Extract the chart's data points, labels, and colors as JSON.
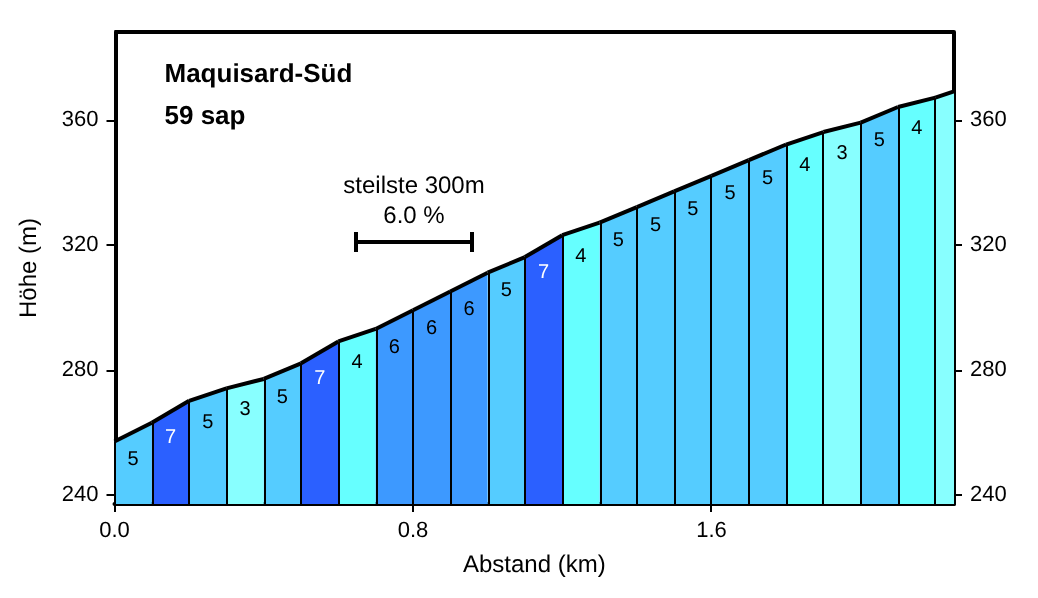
{
  "chart_data": {
    "type": "area",
    "title": "Maquisard-Süd",
    "subtitle": "59 sap",
    "xlabel": "Abstand (km)",
    "ylabel": "Höhe (m)",
    "series": [
      {
        "color": "#55ccff",
        "x": [
          0,
          0.1
        ],
        "values": [
          257,
          263
        ]
      },
      {
        "color": "#2b60ff",
        "x": [
          0.1,
          0.2
        ],
        "values": [
          263,
          270
        ]
      },
      {
        "color": "#55ccff",
        "x": [
          0.2,
          0.3
        ],
        "values": [
          270,
          274
        ]
      },
      {
        "color": "#88ffff",
        "x": [
          0.3,
          0.4
        ],
        "values": [
          274,
          277
        ]
      },
      {
        "color": "#55ccff",
        "x": [
          0.4,
          0.5
        ],
        "values": [
          277,
          282
        ]
      },
      {
        "color": "#2b60ff",
        "x": [
          0.5,
          0.6
        ],
        "values": [
          282,
          289
        ]
      },
      {
        "color": "#66ffff",
        "x": [
          0.6,
          0.7
        ],
        "values": [
          289,
          293
        ]
      },
      {
        "color": "#3d99ff",
        "x": [
          0.7,
          0.8
        ],
        "values": [
          293,
          299
        ]
      },
      {
        "color": "#3d99ff",
        "x": [
          0.8,
          0.9
        ],
        "values": [
          299,
          305
        ]
      },
      {
        "color": "#3d99ff",
        "x": [
          0.9,
          1.0
        ],
        "values": [
          305,
          311
        ]
      },
      {
        "color": "#55ccff",
        "x": [
          1.0,
          1.1
        ],
        "values": [
          311,
          316
        ]
      },
      {
        "color": "#2b60ff",
        "x": [
          1.1,
          1.2
        ],
        "values": [
          316,
          323
        ]
      },
      {
        "color": "#66ffff",
        "x": [
          1.2,
          1.3
        ],
        "values": [
          323,
          327
        ]
      },
      {
        "color": "#55ccff",
        "x": [
          1.3,
          1.4
        ],
        "values": [
          327,
          332
        ]
      },
      {
        "color": "#55ccff",
        "x": [
          1.4,
          1.5
        ],
        "values": [
          332,
          337
        ]
      },
      {
        "color": "#55ccff",
        "x": [
          1.5,
          1.6
        ],
        "values": [
          337,
          342
        ]
      },
      {
        "color": "#55ccff",
        "x": [
          1.6,
          1.7
        ],
        "values": [
          342,
          347
        ]
      },
      {
        "color": "#55ccff",
        "x": [
          1.7,
          1.8
        ],
        "values": [
          347,
          352
        ]
      },
      {
        "color": "#66ffff",
        "x": [
          1.8,
          1.9
        ],
        "values": [
          352,
          356
        ]
      },
      {
        "color": "#88ffff",
        "x": [
          1.9,
          2.0
        ],
        "values": [
          356,
          359
        ]
      },
      {
        "color": "#55ccff",
        "x": [
          2.0,
          2.1
        ],
        "values": [
          359,
          364
        ]
      },
      {
        "color": "#66ffff",
        "x": [
          2.1,
          2.2
        ],
        "values": [
          364,
          367
        ]
      },
      {
        "color": "#88ffff",
        "x": [
          2.2,
          2.25
        ],
        "values": [
          367,
          369
        ]
      }
    ],
    "annotations": [
      {
        "text": "5",
        "x": 0.05,
        "y": 260
      },
      {
        "text": "7",
        "x": 0.15,
        "y": 267
      },
      {
        "text": "5",
        "x": 0.25,
        "y": 272
      },
      {
        "text": "3",
        "x": 0.35,
        "y": 276
      },
      {
        "text": "5",
        "x": 0.45,
        "y": 280
      },
      {
        "text": "7",
        "x": 0.55,
        "y": 286
      },
      {
        "text": "4",
        "x": 0.65,
        "y": 291
      },
      {
        "text": "6",
        "x": 0.75,
        "y": 296
      },
      {
        "text": "6",
        "x": 0.85,
        "y": 302
      },
      {
        "text": "6",
        "x": 0.95,
        "y": 308
      },
      {
        "text": "5",
        "x": 1.05,
        "y": 314
      },
      {
        "text": "7",
        "x": 1.15,
        "y": 320
      },
      {
        "text": "4",
        "x": 1.25,
        "y": 325
      },
      {
        "text": "5",
        "x": 1.35,
        "y": 330
      },
      {
        "text": "5",
        "x": 1.45,
        "y": 335
      },
      {
        "text": "5",
        "x": 1.55,
        "y": 340
      },
      {
        "text": "5",
        "x": 1.65,
        "y": 345
      },
      {
        "text": "5",
        "x": 1.75,
        "y": 350
      },
      {
        "text": "4",
        "x": 1.85,
        "y": 354
      },
      {
        "text": "3",
        "x": 1.95,
        "y": 358
      },
      {
        "text": "5",
        "x": 2.05,
        "y": 362
      },
      {
        "text": "4",
        "x": 2.15,
        "y": 366
      },
      "steilste 300m\n6.0 %"
    ],
    "xlim": [
      0,
      2.25
    ],
    "xticks": [
      {
        "value": 0,
        "label": "0.0"
      },
      0.8,
      1.6
    ],
    "ylim": [
      237,
      388
    ],
    "yticks": [
      240,
      280,
      320,
      360
    ],
    "y2lim": [
      237,
      388
    ],
    "y2ticks": [
      240,
      280,
      320,
      360
    ],
    "grid": false
  }
}
